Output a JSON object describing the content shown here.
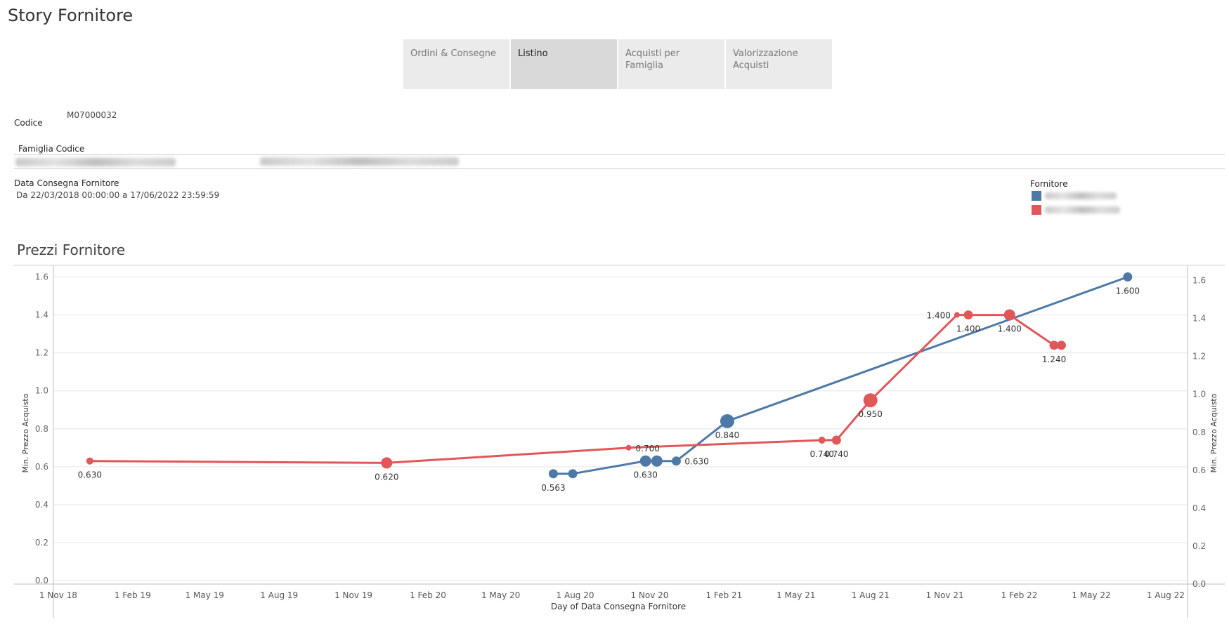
{
  "story": {
    "title": "Story Fornitore"
  },
  "tabs": [
    {
      "label": "Ordini & Consegne",
      "active": false
    },
    {
      "label": "Listino",
      "active": true
    },
    {
      "label": "Acquisti per Famiglia",
      "active": false
    },
    {
      "label": "Valorizzazione Acquisti",
      "active": false
    }
  ],
  "filters": {
    "codice_label": "Codice",
    "codice_value": "M07000032",
    "famiglia_label": "Famiglia Codice",
    "data_label": "Data Consegna Fornitore",
    "data_value": "Da 22/03/2018 00:00:00 a 17/06/2022 23:59:59"
  },
  "legend": {
    "title": "Fornitore",
    "items": [
      {
        "color": "#4e79a7"
      },
      {
        "color": "#e15759"
      }
    ]
  },
  "colors": {
    "blue": "#4e79a7",
    "red": "#e15759",
    "grid": "#e6e6e6",
    "axis": "#bdbdbd"
  },
  "chart_data": {
    "type": "line",
    "title": "Prezzi Fornitore",
    "xlabel": "Day of Data Consegna Fornitore",
    "ylabel_left": "Min. Prezzo Acquisto",
    "ylabel_right": "Min. Prezzo Acquisto",
    "xlim": [
      "2018-10-26",
      "2022-08-28"
    ],
    "ylim": [
      0.0,
      1.65
    ],
    "y_ticks": [
      0.0,
      0.2,
      0.4,
      0.6,
      0.8,
      1.0,
      1.2,
      1.4,
      1.6
    ],
    "y_tick_labels": [
      "0.0",
      "0.2",
      "0.4",
      "0.6",
      "0.8",
      "1.0",
      "1.2",
      "1.4",
      "1.6"
    ],
    "right_y_ticks": [
      0.0,
      0.2,
      0.4,
      0.6,
      0.8,
      1.0,
      1.2,
      1.4,
      1.6
    ],
    "right_y_tick_labels": [
      "0.0",
      "0.2",
      "0.4",
      "0.6",
      "0.8",
      "1.0",
      "1.2",
      "1.4",
      "1.6"
    ],
    "x_ticks": [
      "2018-11-01",
      "2019-02-01",
      "2019-05-01",
      "2019-08-01",
      "2019-11-01",
      "2020-02-01",
      "2020-05-01",
      "2020-08-01",
      "2020-11-01",
      "2021-02-01",
      "2021-05-01",
      "2021-08-01",
      "2021-11-01",
      "2022-02-01",
      "2022-05-01",
      "2022-08-01"
    ],
    "x_tick_labels": [
      "1 Nov 18",
      "1 Feb 19",
      "1 May 19",
      "1 Aug 19",
      "1 Nov 19",
      "1 Feb 20",
      "1 May 20",
      "1 Aug 20",
      "1 Nov 20",
      "1 Feb 21",
      "1 May 21",
      "1 Aug 21",
      "1 Nov 21",
      "1 Feb 22",
      "1 May 22",
      "1 Aug 22"
    ],
    "grid": true,
    "series": [
      {
        "color": "#4e79a7",
        "points": [
          {
            "x": "2020-07-05",
            "y": 0.563,
            "size": "m",
            "label": "0.563"
          },
          {
            "x": "2020-07-29",
            "y": 0.563,
            "size": "m",
            "label": ""
          },
          {
            "x": "2020-10-27",
            "y": 0.63,
            "size": "l",
            "label": "0.630"
          },
          {
            "x": "2020-11-10",
            "y": 0.63,
            "size": "l",
            "label": ""
          },
          {
            "x": "2020-12-04",
            "y": 0.63,
            "size": "m",
            "label": "0.630"
          },
          {
            "x": "2021-02-05",
            "y": 0.84,
            "size": "xl",
            "label": "0.840"
          },
          {
            "x": "2022-06-15",
            "y": 1.6,
            "size": "m",
            "label": "1.600"
          }
        ]
      },
      {
        "color": "#e15759",
        "points": [
          {
            "x": "2018-12-10",
            "y": 0.63,
            "size": "s",
            "label": "0.630"
          },
          {
            "x": "2019-12-12",
            "y": 0.62,
            "size": "l",
            "label": "0.620"
          },
          {
            "x": "2020-10-06",
            "y": 0.7,
            "size": "xs",
            "label": "0.700"
          },
          {
            "x": "2021-06-02",
            "y": 0.74,
            "size": "s",
            "label": "0.740"
          },
          {
            "x": "2021-06-20",
            "y": 0.74,
            "size": "m",
            "label": "0.740"
          },
          {
            "x": "2021-08-01",
            "y": 0.95,
            "size": "xl",
            "label": "0.950"
          },
          {
            "x": "2021-11-16",
            "y": 1.4,
            "size": "xs",
            "label": "1.400"
          },
          {
            "x": "2021-11-30",
            "y": 1.4,
            "size": "m",
            "label": "1.400"
          },
          {
            "x": "2022-01-20",
            "y": 1.4,
            "size": "l",
            "label": "1.400"
          },
          {
            "x": "2022-03-16",
            "y": 1.24,
            "size": "m",
            "label": "1.240"
          },
          {
            "x": "2022-03-25",
            "y": 1.24,
            "size": "m",
            "label": ""
          }
        ]
      }
    ]
  }
}
